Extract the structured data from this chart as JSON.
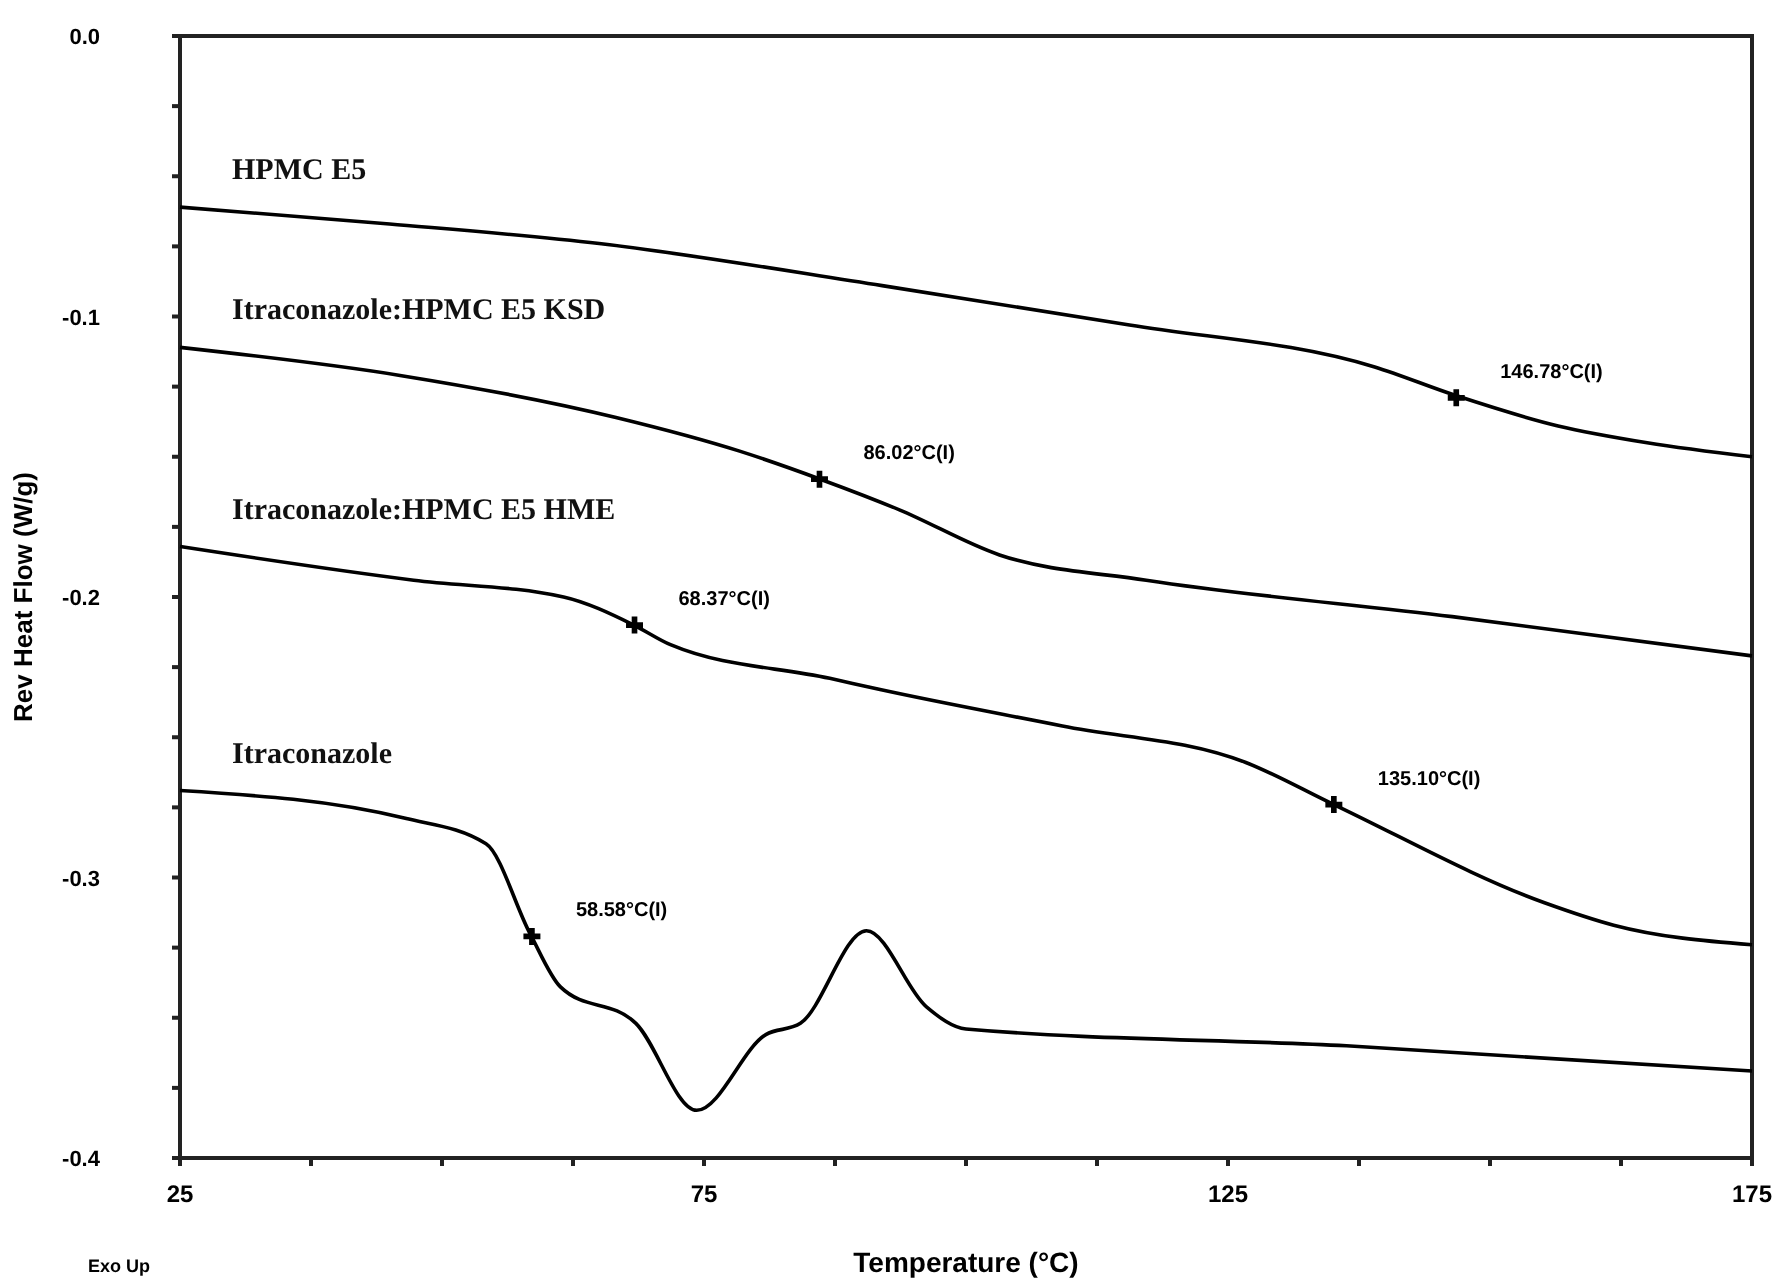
{
  "chart_data": {
    "type": "line",
    "xlabel": "Temperature (°C)",
    "ylabel": "Rev Heat Flow (W/g)",
    "xlim": [
      25,
      175
    ],
    "xticks": [
      25,
      {
        "value": 37.5,
        "label": null
      },
      {
        "value": 50,
        "label": null
      },
      {
        "value": 62.5,
        "label": null
      },
      75,
      {
        "value": 87.5,
        "label": null
      },
      {
        "value": 100,
        "label": null
      },
      {
        "value": 112.5,
        "label": null
      },
      125,
      {
        "value": 137.5,
        "label": null
      },
      {
        "value": 150,
        "label": null
      },
      {
        "value": 162.5,
        "label": null
      },
      175
    ],
    "ylim": [
      -0.4,
      0
    ],
    "yticks": [
      -0.4,
      {
        "value": -0.375,
        "label": null
      },
      {
        "value": -0.35,
        "label": null
      },
      {
        "value": -0.325,
        "label": null
      },
      -0.3,
      {
        "value": -0.275,
        "label": null
      },
      {
        "value": -0.25,
        "label": null
      },
      {
        "value": -0.225,
        "label": null
      },
      -0.2,
      {
        "value": -0.175,
        "label": null
      },
      {
        "value": -0.15,
        "label": null
      },
      {
        "value": -0.125,
        "label": null
      },
      -0.1,
      {
        "value": -0.075,
        "label": null
      },
      {
        "value": -0.05,
        "label": null
      },
      {
        "value": -0.025,
        "label": null
      },
      {
        "value": 0,
        "label": "0.0"
      }
    ],
    "grid": false,
    "legend": false,
    "marker": "none",
    "line_style": "solid",
    "series": [
      {
        "name": "HPMC E5",
        "color": "#000000",
        "x": [
          25,
          45,
          65,
          92,
          115.6,
          139,
          146.6,
          156.5,
          165,
          175
        ],
        "values": [
          -0.061,
          -0.067,
          -0.074,
          -0.089,
          -0.103,
          -0.118,
          -0.128,
          -0.139,
          -0.145,
          -0.15
        ]
      },
      {
        "name": "Itraconazole:HPMC E5 KSD",
        "color": "#000000",
        "x": [
          25,
          46,
          66.6,
          78.4,
          86.1,
          93.7,
          103.2,
          117.2,
          146.4,
          175
        ],
        "values": [
          -0.111,
          -0.121,
          -0.136,
          -0.148,
          -0.158,
          -0.169,
          -0.185,
          -0.194,
          -0.207,
          -0.221
        ]
      },
      {
        "name": "Itraconazole:HPMC E5 HME",
        "color": "#000000",
        "x": [
          25,
          47.3,
          61.6,
          68.3,
          71.8,
          87,
          91.8,
          109.2,
          126.7,
          135.1,
          155.2,
          161.8,
          175
        ],
        "values": [
          -0.182,
          -0.194,
          -0.2,
          -0.21,
          -0.217,
          -0.229,
          -0.233,
          -0.246,
          -0.259,
          -0.274,
          -0.309,
          -0.317,
          -0.324
        ]
      },
      {
        "name": "Itraconazole",
        "color": "#000000",
        "x": [
          25,
          46.6,
          54.2,
          58.4,
          61.3,
          68.5,
          74.3,
          80.9,
          84.2,
          90.5,
          96.2,
          100,
          136.3,
          175
        ],
        "values": [
          -0.269,
          -0.279,
          -0.288,
          -0.32,
          -0.339,
          -0.352,
          -0.383,
          -0.356,
          -0.352,
          -0.319,
          -0.346,
          -0.354,
          -0.36,
          -0.369
        ]
      }
    ],
    "annotations": [
      {
        "text": "146.78°C(I)",
        "x": 146.78,
        "y": -0.129
      },
      {
        "text": "86.02°C(I)",
        "x": 86.02,
        "y": -0.158
      },
      {
        "text": "68.37°C(I)",
        "x": 68.37,
        "y": -0.21
      },
      {
        "text": "135.10°C(I)",
        "x": 135.1,
        "y": -0.274
      },
      {
        "text": "58.58°C(I)",
        "x": 58.58,
        "y": -0.321
      },
      "Exo Up"
    ]
  }
}
